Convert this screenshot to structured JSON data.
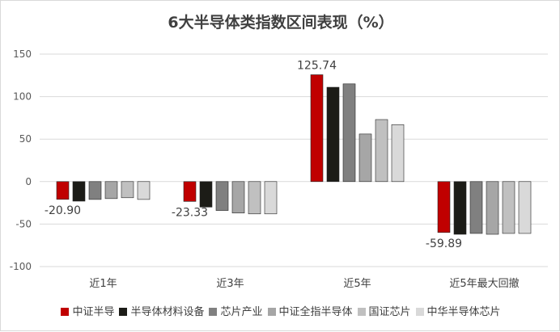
{
  "chart_data": {
    "type": "bar",
    "title": "6大半导体类指数区间表现（%）",
    "xlabel": "",
    "ylabel": "",
    "ylim": [
      -100,
      150
    ],
    "yticks": [
      150,
      100,
      50,
      0,
      -50,
      -100
    ],
    "grid": true,
    "legend_position": "bottom",
    "categories": [
      "近1年",
      "近3年",
      "近5年",
      "近5年最大回撤"
    ],
    "series": [
      {
        "name": "中证半导",
        "color": "#c00000",
        "values": [
          -20.9,
          -23.33,
          125.74,
          -59.89
        ]
      },
      {
        "name": "半导体材料设备",
        "color": "#1c1c17",
        "values": [
          -23,
          -30,
          111,
          -62
        ]
      },
      {
        "name": "芯片产业",
        "color": "#808080",
        "values": [
          -21,
          -34,
          115,
          -61
        ]
      },
      {
        "name": "中证全指半导体",
        "color": "#a6a6a6",
        "values": [
          -20,
          -37,
          56,
          -62
        ]
      },
      {
        "name": "国证芯片",
        "color": "#c0c0c0",
        "values": [
          -19,
          -38,
          73,
          -61
        ]
      },
      {
        "name": "中华半导体芯片",
        "color": "#d9d9d9",
        "values": [
          -21,
          -38,
          67,
          -61
        ]
      }
    ],
    "data_labels": [
      {
        "category": "近1年",
        "text": "-20.90"
      },
      {
        "category": "近3年",
        "text": "-23.33"
      },
      {
        "category": "近5年",
        "text": "125.74"
      },
      {
        "category": "近5年最大回撤",
        "text": "-59.89"
      }
    ]
  }
}
